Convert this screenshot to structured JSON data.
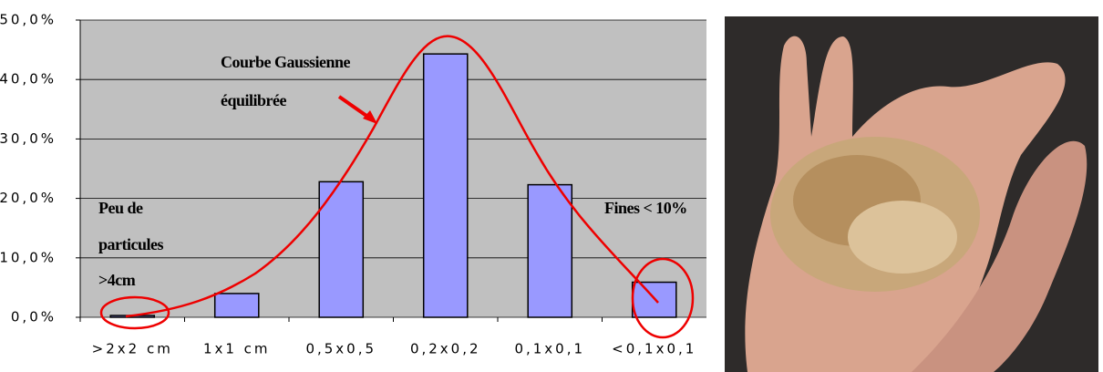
{
  "chart_data": {
    "type": "bar",
    "categories": [
      ">2x2 cm",
      "1x1 cm",
      "0,5x0,5",
      "0,2x0,2",
      "0,1x0,1",
      "<0,1x0,1"
    ],
    "values": [
      0.3,
      4.0,
      22.8,
      44.3,
      22.3,
      5.9
    ],
    "color": "#9999ff",
    "ylim": [
      0,
      50
    ],
    "yticks": [
      {
        "value": 0,
        "label": "0,0%"
      },
      {
        "value": 10,
        "label": "10,0%"
      },
      {
        "value": 20,
        "label": "20,0%"
      },
      {
        "value": 30,
        "label": "30,0%"
      },
      {
        "value": 40,
        "label": "40,0%"
      },
      {
        "value": 50,
        "label": "50,0%"
      }
    ],
    "grid": true,
    "annotations": {
      "curve": [
        "Courbe Gaussienne",
        "équilibrée"
      ],
      "coarse": [
        "Peu de",
        "particules",
        ">4cm"
      ],
      "fines": "Fines < 10%"
    }
  }
}
